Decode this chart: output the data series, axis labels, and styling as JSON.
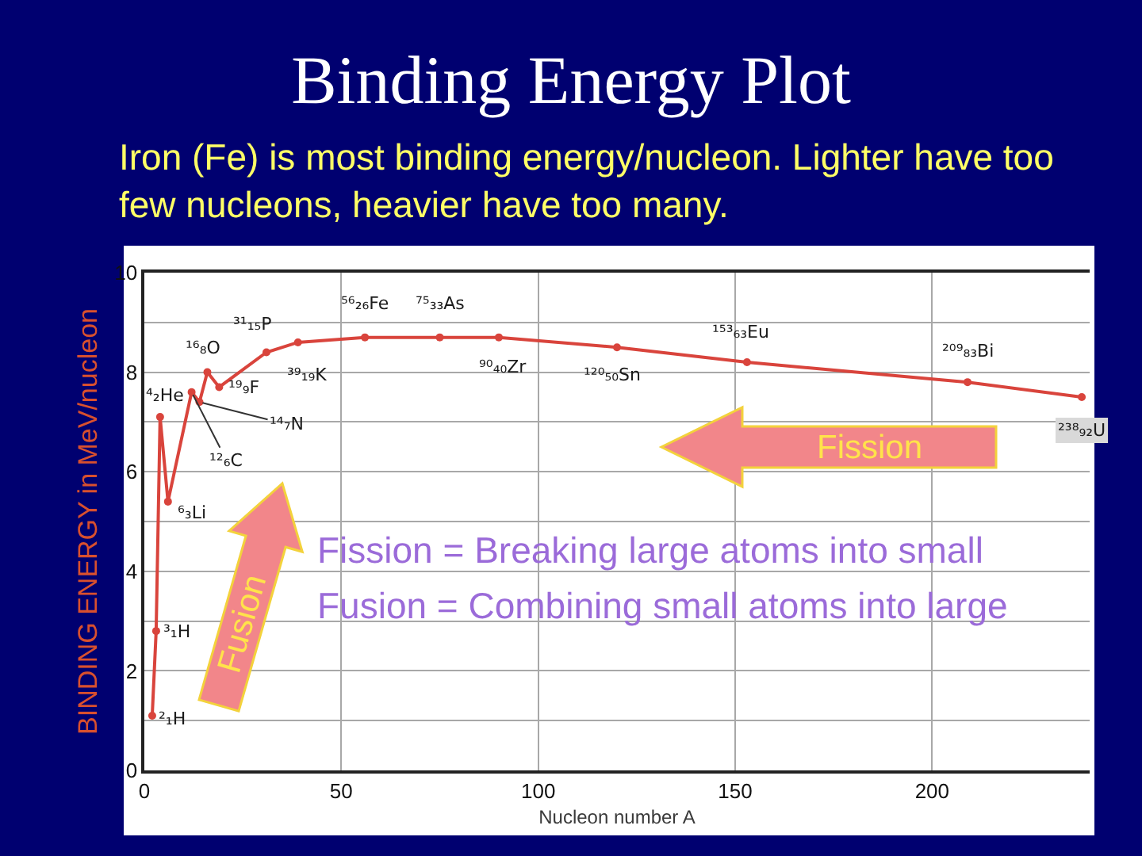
{
  "chart_data": {
    "type": "line",
    "title": "Binding Energy Plot",
    "subtitle": "Iron (Fe) is most binding energy/nucleon. Lighter have too few nucleons, heavier have too many.",
    "xlabel": "Nucleon number A",
    "ylabel": "BINDING ENERGY in MeV/nucleon",
    "x": [
      2,
      3,
      4,
      6,
      12,
      14,
      16,
      19,
      31,
      39,
      56,
      75,
      90,
      120,
      153,
      209,
      238
    ],
    "series": [
      {
        "color": "#d9443c",
        "values": [
          1.1,
          2.8,
          7.1,
          5.4,
          7.6,
          7.4,
          8.0,
          7.7,
          8.4,
          8.6,
          8.7,
          8.7,
          8.7,
          8.5,
          8.2,
          7.8,
          7.5
        ]
      }
    ],
    "xlim": [
      0,
      240
    ],
    "xticks": [
      0,
      50,
      100,
      150,
      200
    ],
    "ylim": [
      0,
      10
    ],
    "yticks": [
      0,
      {
        "value": 1,
        "label": null
      },
      2,
      {
        "value": 3,
        "label": null
      },
      4,
      {
        "value": 5,
        "label": null
      },
      6,
      {
        "value": 7,
        "label": null
      },
      8,
      {
        "value": 9,
        "label": null
      },
      10
    ],
    "grid": true,
    "marker": "circle",
    "line_style": "solid",
    "annotations": [
      "Fission",
      "Fusion",
      "Fission = Breaking large atoms into small",
      "Fusion = Combining small atoms into large",
      {
        "text": "²₁H",
        "x": 2,
        "y": 1.1
      },
      {
        "text": "³₁H",
        "x": 3,
        "y": 2.8
      },
      {
        "text": "⁴₂He",
        "x": 4,
        "y": 7.1
      },
      {
        "text": "⁶₃Li",
        "x": 6,
        "y": 5.4
      },
      {
        "text": "¹²₆C",
        "x": 12,
        "y": 7.6
      },
      {
        "text": "¹⁴₇N",
        "x": 14,
        "y": 7.4
      },
      {
        "text": "¹⁶₈O",
        "x": 16,
        "y": 8.0
      },
      {
        "text": "¹⁹₉F",
        "x": 19,
        "y": 7.7
      },
      {
        "text": "³¹₁₅P",
        "x": 31,
        "y": 8.4
      },
      {
        "text": "³⁹₁₉K",
        "x": 39,
        "y": 8.6
      },
      {
        "text": "⁵⁶₂₆Fe",
        "x": 56,
        "y": 8.7
      },
      {
        "text": "⁷⁵₃₃As",
        "x": 75,
        "y": 8.7
      },
      {
        "text": "⁹⁰₄₀Zr",
        "x": 90,
        "y": 8.7
      },
      {
        "text": "¹²⁰₅₀Sn",
        "x": 120,
        "y": 8.5
      },
      {
        "text": "¹⁵³₆₃Eu",
        "x": 153,
        "y": 8.2
      },
      {
        "text": "²⁰⁹₈₃Bi",
        "x": 209,
        "y": 7.8
      },
      {
        "text": "²³⁸₉₂U",
        "x": 238,
        "y": 7.5
      }
    ]
  }
}
